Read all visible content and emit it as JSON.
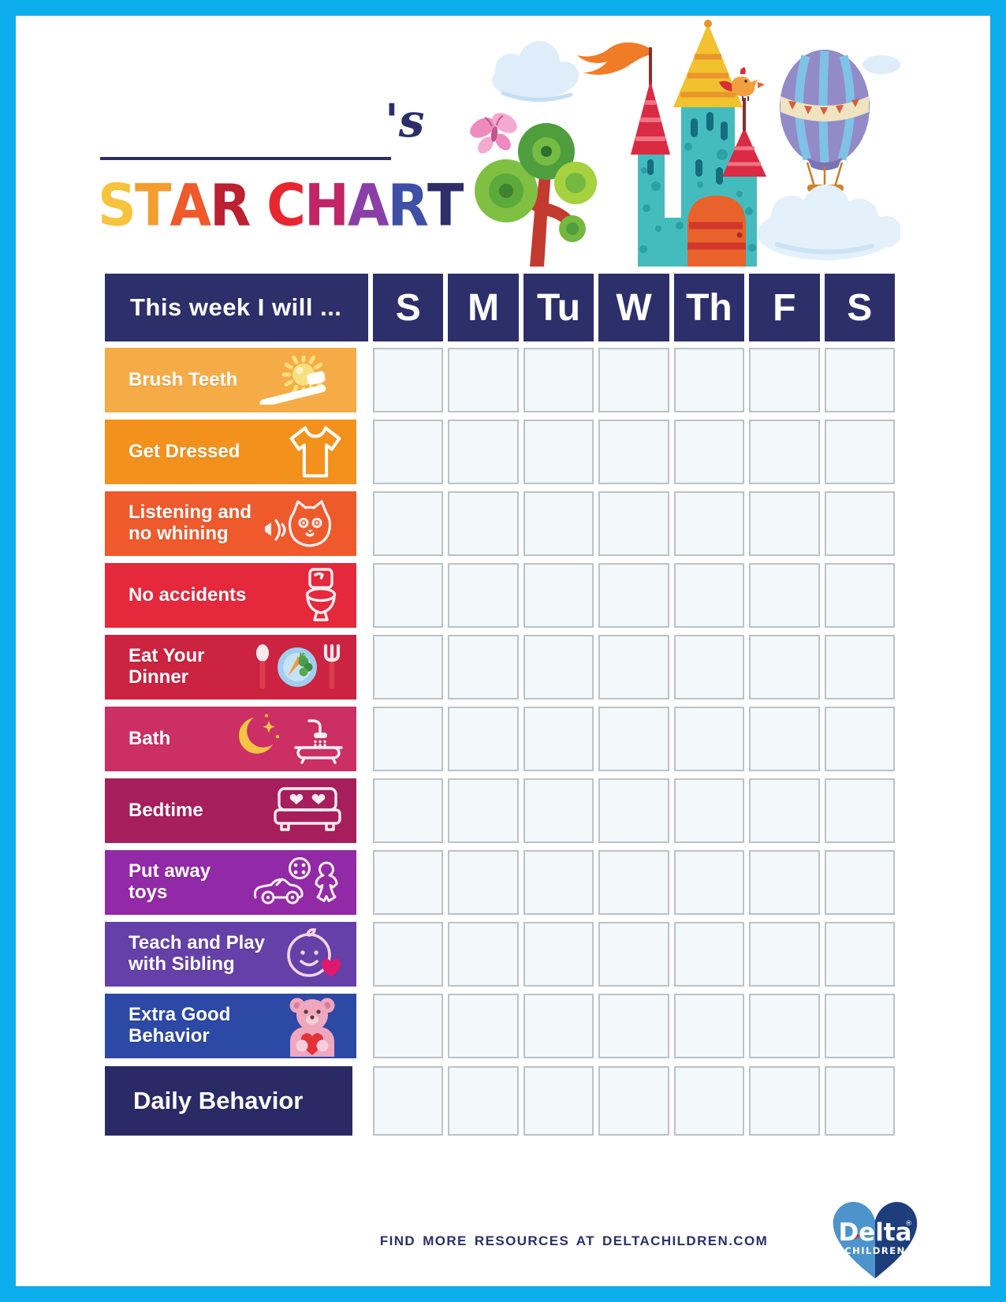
{
  "name_field": {
    "value": "",
    "suffix": "'s"
  },
  "title": {
    "text": "STAR CHART",
    "letters": [
      {
        "ch": "S",
        "color": "#F6C33C"
      },
      {
        "ch": "T",
        "color": "#F49C2D"
      },
      {
        "ch": "A",
        "color": "#EF5A2B"
      },
      {
        "ch": "R",
        "color": "#BC2031"
      },
      {
        "ch": " "
      },
      {
        "ch": "C",
        "color": "#E8262F"
      },
      {
        "ch": "H",
        "color": "#C22566"
      },
      {
        "ch": "A",
        "color": "#8A3FA8"
      },
      {
        "ch": "R",
        "color": "#3E4FA5"
      },
      {
        "ch": "T",
        "color": "#2D2F6A"
      }
    ]
  },
  "chart": {
    "header_label": "This week I will ...",
    "days": [
      "S",
      "M",
      "Tu",
      "W",
      "Th",
      "F",
      "S"
    ],
    "rows": [
      {
        "label": "Brush Teeth",
        "lines": [
          "Brush Teeth"
        ],
        "color": "#F6AC46",
        "icon": "sun-toothbrush-icon"
      },
      {
        "label": "Get Dressed",
        "lines": [
          "Get Dressed"
        ],
        "color": "#F2921D",
        "icon": "tshirt-icon"
      },
      {
        "label": "Listening and no whining",
        "lines": [
          "Listening and",
          "no whining"
        ],
        "color": "#EE5A2C",
        "icon": "cat-listening-icon"
      },
      {
        "label": "No accidents",
        "lines": [
          "No accidents"
        ],
        "color": "#E5283B",
        "icon": "toilet-icon"
      },
      {
        "label": "Eat Your Dinner",
        "lines": [
          "Eat Your Dinner"
        ],
        "color": "#CB2340",
        "icon": "dinner-plate-icon"
      },
      {
        "label": "Bath",
        "lines": [
          "Bath"
        ],
        "color": "#CB2F63",
        "icon": "moon-bath-icon"
      },
      {
        "label": "Bedtime",
        "lines": [
          "Bedtime"
        ],
        "color": "#A61E5B",
        "icon": "bed-icon"
      },
      {
        "label": "Put away toys",
        "lines": [
          "Put away toys"
        ],
        "color": "#9229A6",
        "icon": "toys-icon"
      },
      {
        "label": "Teach and Play with Sibling",
        "lines": [
          "Teach and Play",
          "with Sibling"
        ],
        "color": "#6440A8",
        "icon": "baby-sibling-icon"
      },
      {
        "label": "Extra Good Behavior",
        "lines": [
          "Extra Good",
          "Behavior"
        ],
        "color": "#2B49A5",
        "icon": "teddy-bear-heart-icon"
      }
    ],
    "daily_row": {
      "label": "Daily Behavior",
      "lines": [
        "Daily Behavior"
      ],
      "color": "#2A2B66"
    },
    "cells_per_row": 7
  },
  "footer": {
    "text": "FIND MORE RESOURCES AT DELTACHILDREN.COM"
  },
  "logo": {
    "brand": "Delta",
    "registered": "®",
    "sub": "CHILDREN"
  },
  "colors": {
    "page_border": "#0BADEC",
    "header_bg": "#2D2F6A",
    "cell_bg": "#F3F9FB",
    "cell_border": "#BDC2C7",
    "label_text": "#FFFFFF",
    "footer_text": "#2D2F6A",
    "name_line": "#2D2F6A"
  }
}
